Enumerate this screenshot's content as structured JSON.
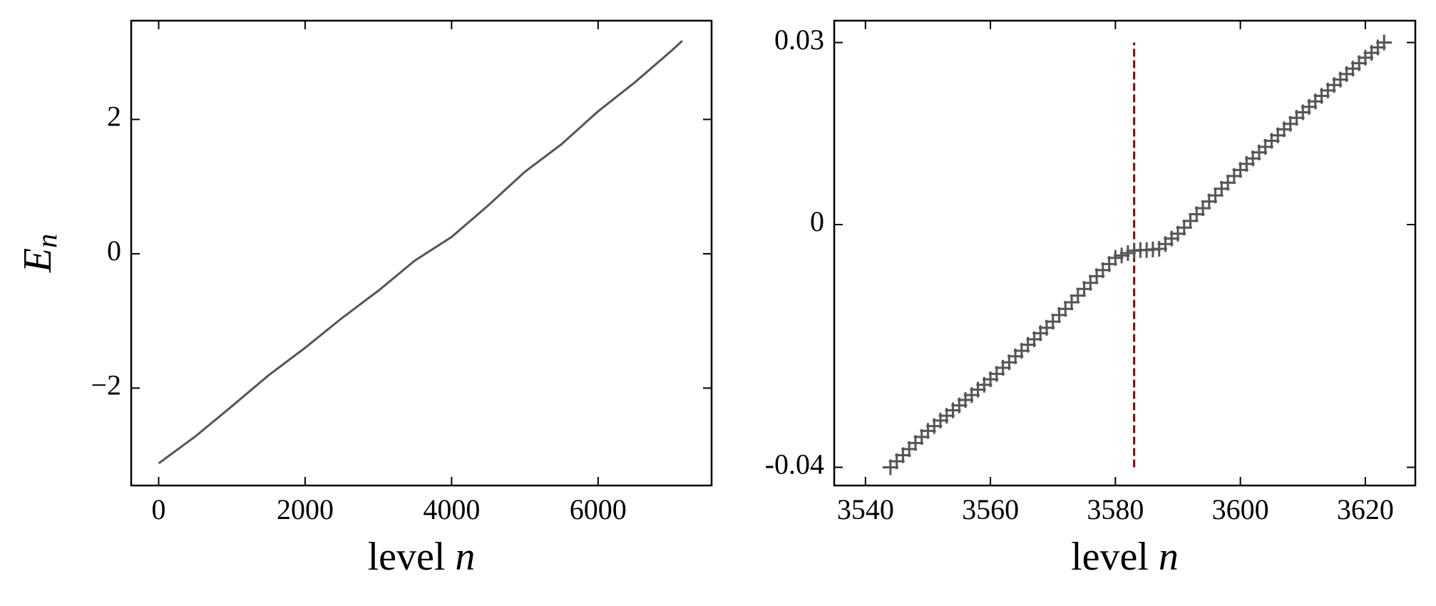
{
  "chart_data": [
    {
      "type": "line",
      "x_label": {
        "text": "level",
        "var": "n"
      },
      "y_label": {
        "main": "E",
        "sub": "n"
      },
      "x": [
        0,
        500,
        1000,
        1500,
        2000,
        2500,
        3000,
        3500,
        4000,
        4500,
        5000,
        5500,
        6000,
        6500,
        7000,
        7150
      ],
      "values": [
        -3.12,
        -2.72,
        -2.27,
        -1.81,
        -1.4,
        -0.96,
        -0.55,
        -0.1,
        0.25,
        0.72,
        1.22,
        1.63,
        2.12,
        2.55,
        3.02,
        3.17
      ],
      "color": "#555555",
      "xlim": [
        -375,
        7550
      ],
      "ylim": [
        -3.45,
        3.47
      ],
      "xticks": [
        0,
        2000,
        4000,
        6000
      ],
      "yticks": [
        {
          "value": -2,
          "label": "−2"
        },
        0,
        2
      ]
    },
    {
      "type": "scatter",
      "x_label": {
        "text": "level",
        "var": "n"
      },
      "x": [
        3544,
        3545,
        3546,
        3547,
        3548,
        3549,
        3550,
        3551,
        3552,
        3553,
        3554,
        3555,
        3556,
        3557,
        3558,
        3559,
        3560,
        3561,
        3562,
        3563,
        3564,
        3565,
        3566,
        3567,
        3568,
        3569,
        3570,
        3571,
        3572,
        3573,
        3574,
        3575,
        3576,
        3577,
        3578,
        3579,
        3580,
        3581,
        3582,
        3583,
        3584,
        3585,
        3586,
        3587,
        3588,
        3589,
        3590,
        3591,
        3592,
        3593,
        3594,
        3595,
        3596,
        3597,
        3598,
        3599,
        3600,
        3601,
        3602,
        3603,
        3604,
        3605,
        3606,
        3607,
        3608,
        3609,
        3610,
        3611,
        3612,
        3613,
        3614,
        3615,
        3616,
        3617,
        3618,
        3619,
        3620,
        3621,
        3622,
        3623
      ],
      "values": [
        -0.04,
        -0.039,
        -0.038,
        -0.037,
        -0.036,
        -0.035,
        -0.034,
        -0.0332,
        -0.0323,
        -0.0315,
        -0.0306,
        -0.0298,
        -0.0289,
        -0.0281,
        -0.0272,
        -0.0264,
        -0.0255,
        -0.0246,
        -0.0236,
        -0.0227,
        -0.0217,
        -0.0208,
        -0.0198,
        -0.0189,
        -0.0179,
        -0.017,
        -0.016,
        -0.0149,
        -0.0139,
        -0.0128,
        -0.0117,
        -0.0106,
        -0.0096,
        -0.0085,
        -0.0075,
        -0.0065,
        -0.0055,
        -0.0051,
        -0.0047,
        -0.0043,
        -0.0042,
        -0.0042,
        -0.0041,
        -0.004,
        -0.0032,
        -0.0023,
        -0.0015,
        -0.0005,
        0.0006,
        0.0017,
        0.0027,
        0.0038,
        0.0048,
        0.0059,
        0.0069,
        0.008,
        0.009,
        0.01,
        0.0109,
        0.0119,
        0.0128,
        0.0138,
        0.0147,
        0.0157,
        0.0166,
        0.0176,
        0.0185,
        0.0194,
        0.0203,
        0.0212,
        0.0221,
        0.023,
        0.0239,
        0.0248,
        0.0257,
        0.0266,
        0.0275,
        0.0283,
        0.0292,
        0.03
      ],
      "color": "#555555",
      "vline": {
        "x": 3583,
        "ymin": -0.04,
        "ymax": 0.03,
        "color": "#8b0000"
      },
      "xlim": [
        3535,
        3628
      ],
      "ylim": [
        -0.043,
        0.0336
      ],
      "xticks": [
        3540,
        3560,
        3580,
        3600,
        3620
      ],
      "yticks": [
        -0.04,
        0,
        0.03
      ]
    }
  ]
}
